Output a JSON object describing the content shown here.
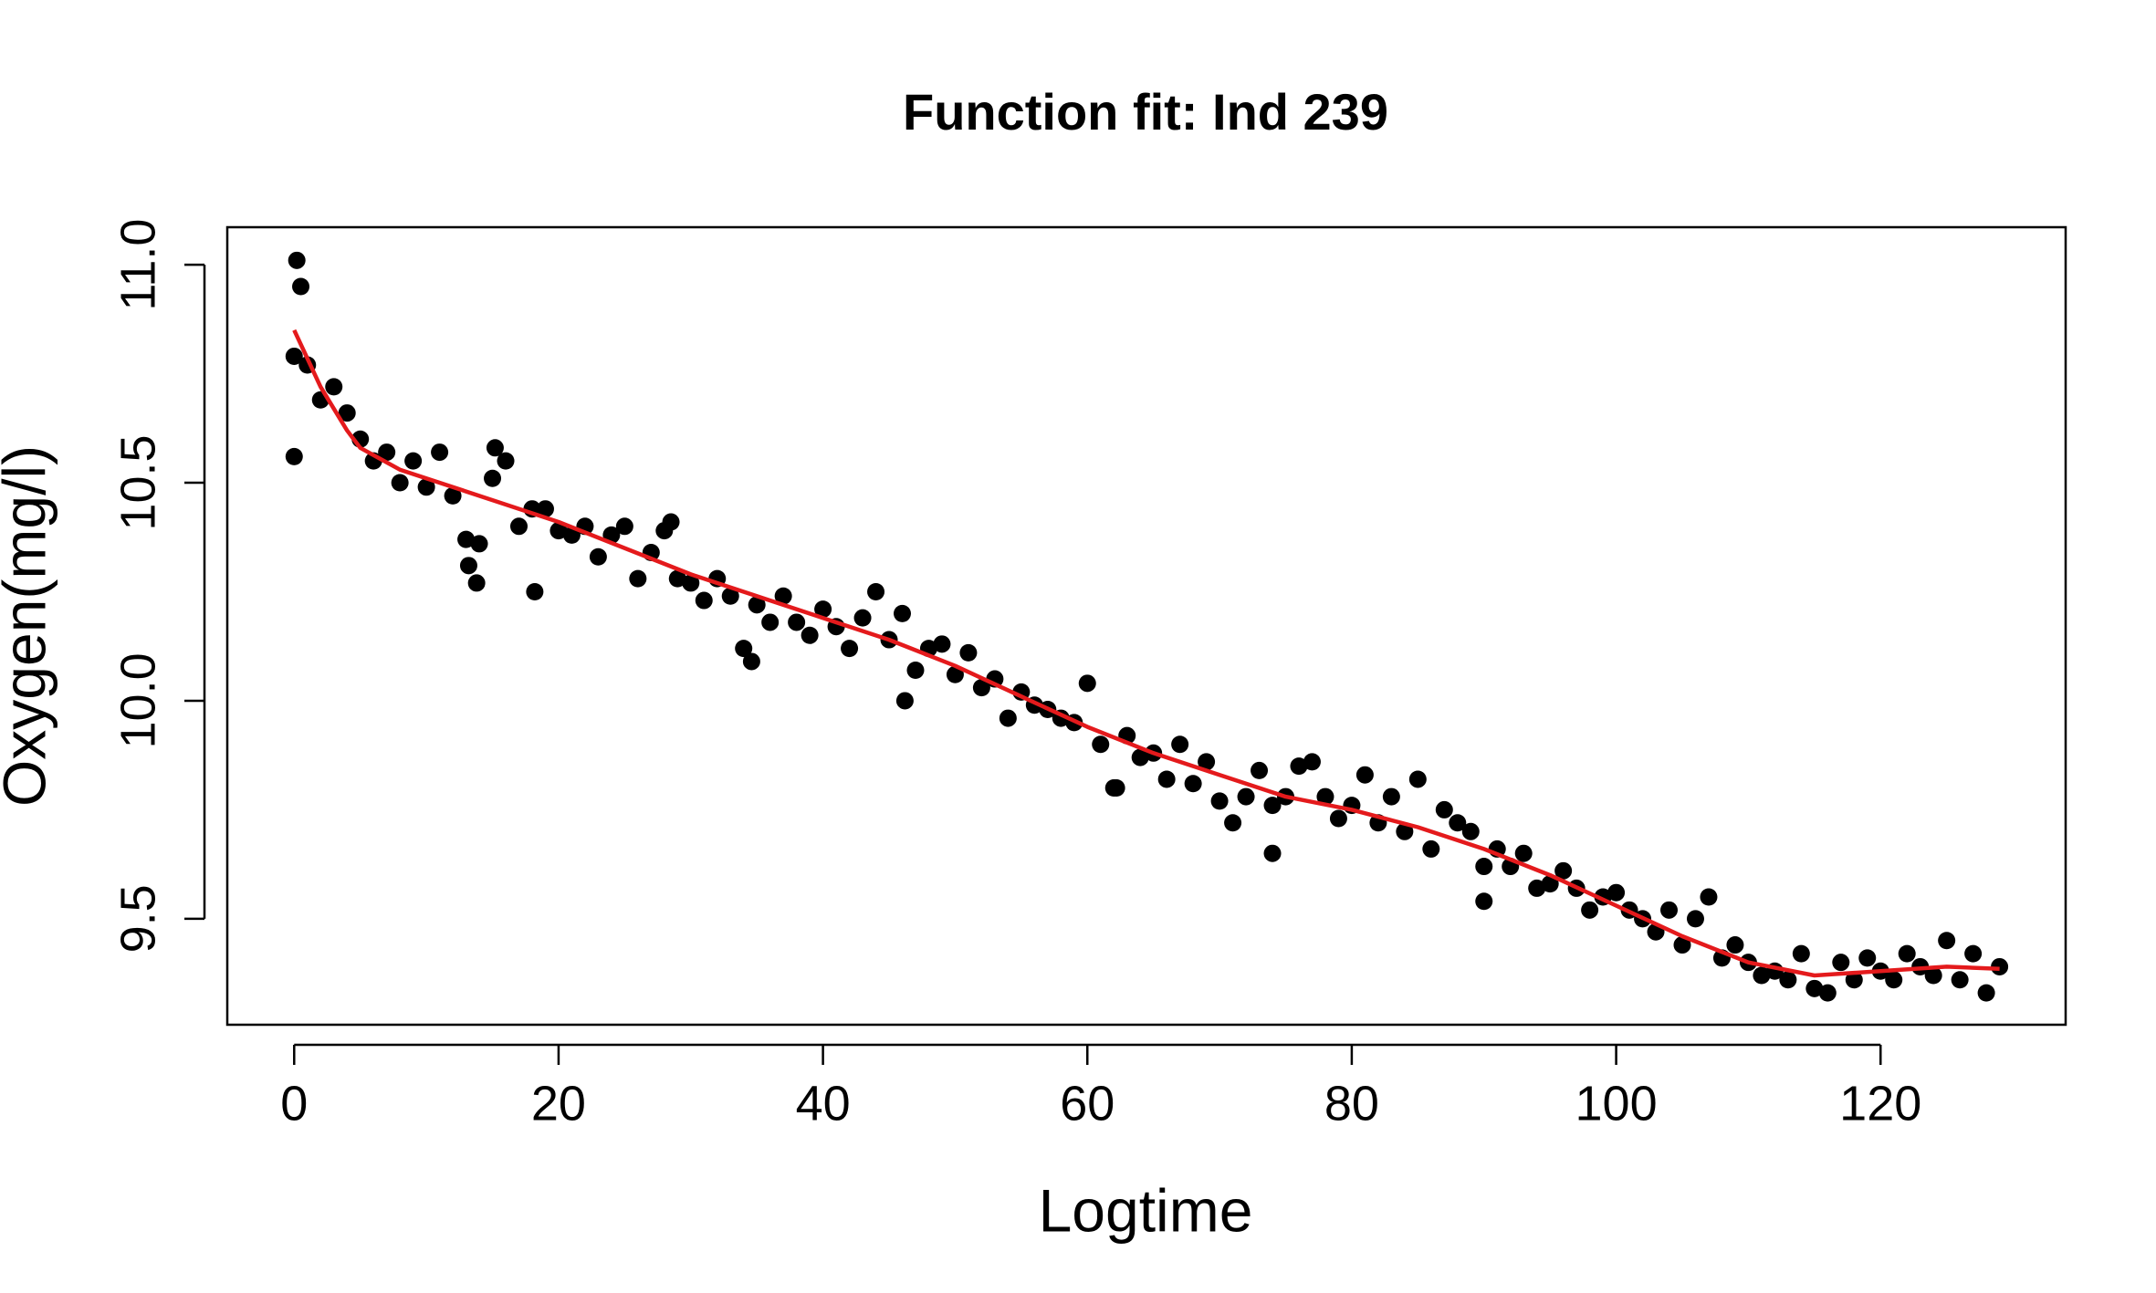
{
  "chart_data": {
    "type": "scatter",
    "title": "Function fit: Ind 239",
    "xlabel": "Logtime",
    "ylabel": "Oxygen(mg/l)",
    "xlim": [
      -5.06,
      134.0
    ],
    "ylim": [
      9.257,
      11.086
    ],
    "xticks": [
      0,
      20,
      40,
      60,
      80,
      100,
      120
    ],
    "yticks": [
      9.5,
      {
        "value": 10,
        "label": "10.0"
      },
      10.5,
      {
        "value": 11,
        "label": "11.0"
      }
    ],
    "points": {
      "color": "#000000",
      "x": [
        0,
        1,
        2,
        3,
        4,
        5,
        6,
        7,
        8,
        9,
        10,
        11,
        12,
        13,
        14,
        15,
        16,
        17,
        18,
        19,
        20,
        21,
        22,
        23,
        24,
        25,
        26,
        27,
        28,
        29,
        30,
        31,
        32,
        33,
        34,
        35,
        36,
        37,
        38,
        39,
        40,
        41,
        42,
        43,
        44,
        45,
        46,
        47,
        48,
        49,
        50,
        51,
        52,
        53,
        54,
        55,
        56,
        57,
        58,
        59,
        60,
        61,
        62,
        63,
        64,
        65,
        66,
        67,
        68,
        69,
        70,
        71,
        72,
        73,
        74,
        75,
        76,
        77,
        78,
        79,
        80,
        81,
        82,
        83,
        84,
        85,
        86,
        87,
        88,
        89,
        90,
        91,
        92,
        93,
        94,
        95,
        96,
        97,
        98,
        99,
        100,
        101,
        102,
        103,
        104,
        105,
        106,
        107,
        108,
        109,
        110,
        111,
        112,
        113,
        114,
        115,
        116,
        117,
        118,
        119,
        120,
        121,
        122,
        123,
        124,
        125,
        126,
        127,
        128,
        129,
        0.2,
        0.5,
        0,
        13.2,
        13.8,
        18.2,
        15.2,
        34.6,
        46.2,
        74,
        90,
        28.5,
        62.2
      ],
      "y": [
        10.79,
        10.77,
        10.69,
        10.72,
        10.66,
        10.6,
        10.55,
        10.57,
        10.5,
        10.55,
        10.49,
        10.57,
        10.47,
        10.37,
        10.36,
        10.51,
        10.55,
        10.4,
        10.44,
        10.44,
        10.39,
        10.38,
        10.4,
        10.33,
        10.38,
        10.4,
        10.28,
        10.34,
        10.39,
        10.28,
        10.27,
        10.23,
        10.28,
        10.24,
        10.12,
        10.22,
        10.18,
        10.24,
        10.18,
        10.15,
        10.21,
        10.17,
        10.12,
        10.19,
        10.25,
        10.14,
        10.2,
        10.07,
        10.12,
        10.13,
        10.06,
        10.11,
        10.03,
        10.05,
        9.96,
        10.02,
        9.99,
        9.98,
        9.96,
        9.95,
        10.04,
        9.9,
        9.8,
        9.92,
        9.87,
        9.88,
        9.82,
        9.9,
        9.81,
        9.86,
        9.77,
        9.72,
        9.78,
        9.84,
        9.76,
        9.78,
        9.85,
        9.86,
        9.78,
        9.73,
        9.76,
        9.83,
        9.72,
        9.78,
        9.7,
        9.82,
        9.66,
        9.75,
        9.72,
        9.7,
        9.62,
        9.66,
        9.62,
        9.65,
        9.57,
        9.58,
        9.61,
        9.57,
        9.52,
        9.55,
        9.56,
        9.52,
        9.5,
        9.47,
        9.52,
        9.44,
        9.5,
        9.55,
        9.41,
        9.44,
        9.4,
        9.37,
        9.38,
        9.36,
        9.42,
        9.34,
        9.33,
        9.4,
        9.36,
        9.41,
        9.38,
        9.36,
        9.42,
        9.39,
        9.37,
        9.45,
        9.36,
        9.42,
        9.33,
        9.39,
        11.01,
        10.95,
        10.56,
        10.31,
        10.27,
        10.25,
        10.58,
        10.09,
        10.0,
        9.65,
        9.54,
        10.41,
        9.8
      ]
    },
    "fit": {
      "color": "#e41a1c",
      "x": [
        0,
        2,
        4,
        5,
        8,
        15,
        20,
        30,
        40,
        45,
        50,
        55,
        60,
        65,
        70,
        75,
        80,
        85,
        90,
        95,
        100,
        105,
        110,
        115,
        120,
        125,
        129
      ],
      "y": [
        10.85,
        10.72,
        10.62,
        10.58,
        10.53,
        10.46,
        10.41,
        10.29,
        10.19,
        10.14,
        10.08,
        10.01,
        9.94,
        9.88,
        9.83,
        9.78,
        9.75,
        9.71,
        9.66,
        9.6,
        9.53,
        9.46,
        9.4,
        9.37,
        9.38,
        9.39,
        9.385
      ]
    }
  }
}
